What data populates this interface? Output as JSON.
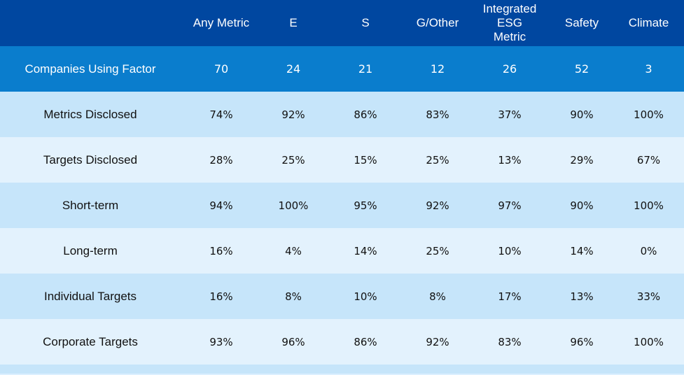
{
  "chart_data": {
    "type": "table",
    "columns": [
      "Any Metric",
      "E",
      "S",
      "G/Other",
      "Integrated\nESG\nMetric",
      "Safety",
      "Climate"
    ],
    "factor_row": {
      "label": "Companies Using Factor",
      "values": [
        "70",
        "24",
        "21",
        "12",
        "26",
        "52",
        "3"
      ]
    },
    "rows": [
      {
        "label": "Metrics Disclosed",
        "values": [
          "74%",
          "92%",
          "86%",
          "83%",
          "37%",
          "90%",
          "100%"
        ]
      },
      {
        "label": "Targets Disclosed",
        "values": [
          "28%",
          "25%",
          "15%",
          "25%",
          "13%",
          "29%",
          "67%"
        ]
      },
      {
        "label": "Short-term",
        "values": [
          "94%",
          "100%",
          "95%",
          "92%",
          "97%",
          "90%",
          "100%"
        ]
      },
      {
        "label": "Long-term",
        "values": [
          "16%",
          "4%",
          "14%",
          "25%",
          "10%",
          "14%",
          "0%"
        ]
      },
      {
        "label": "Individual Targets",
        "values": [
          "16%",
          "8%",
          "10%",
          "8%",
          "17%",
          "13%",
          "33%"
        ]
      },
      {
        "label": "Corporate Targets",
        "values": [
          "93%",
          "96%",
          "86%",
          "92%",
          "83%",
          "96%",
          "100%"
        ]
      }
    ],
    "colors": {
      "header_bg": "#0047a0",
      "factor_bg": "#0a7dcd",
      "row_odd_bg": "#c6e5fa",
      "row_even_bg": "#e3f2fd"
    }
  }
}
